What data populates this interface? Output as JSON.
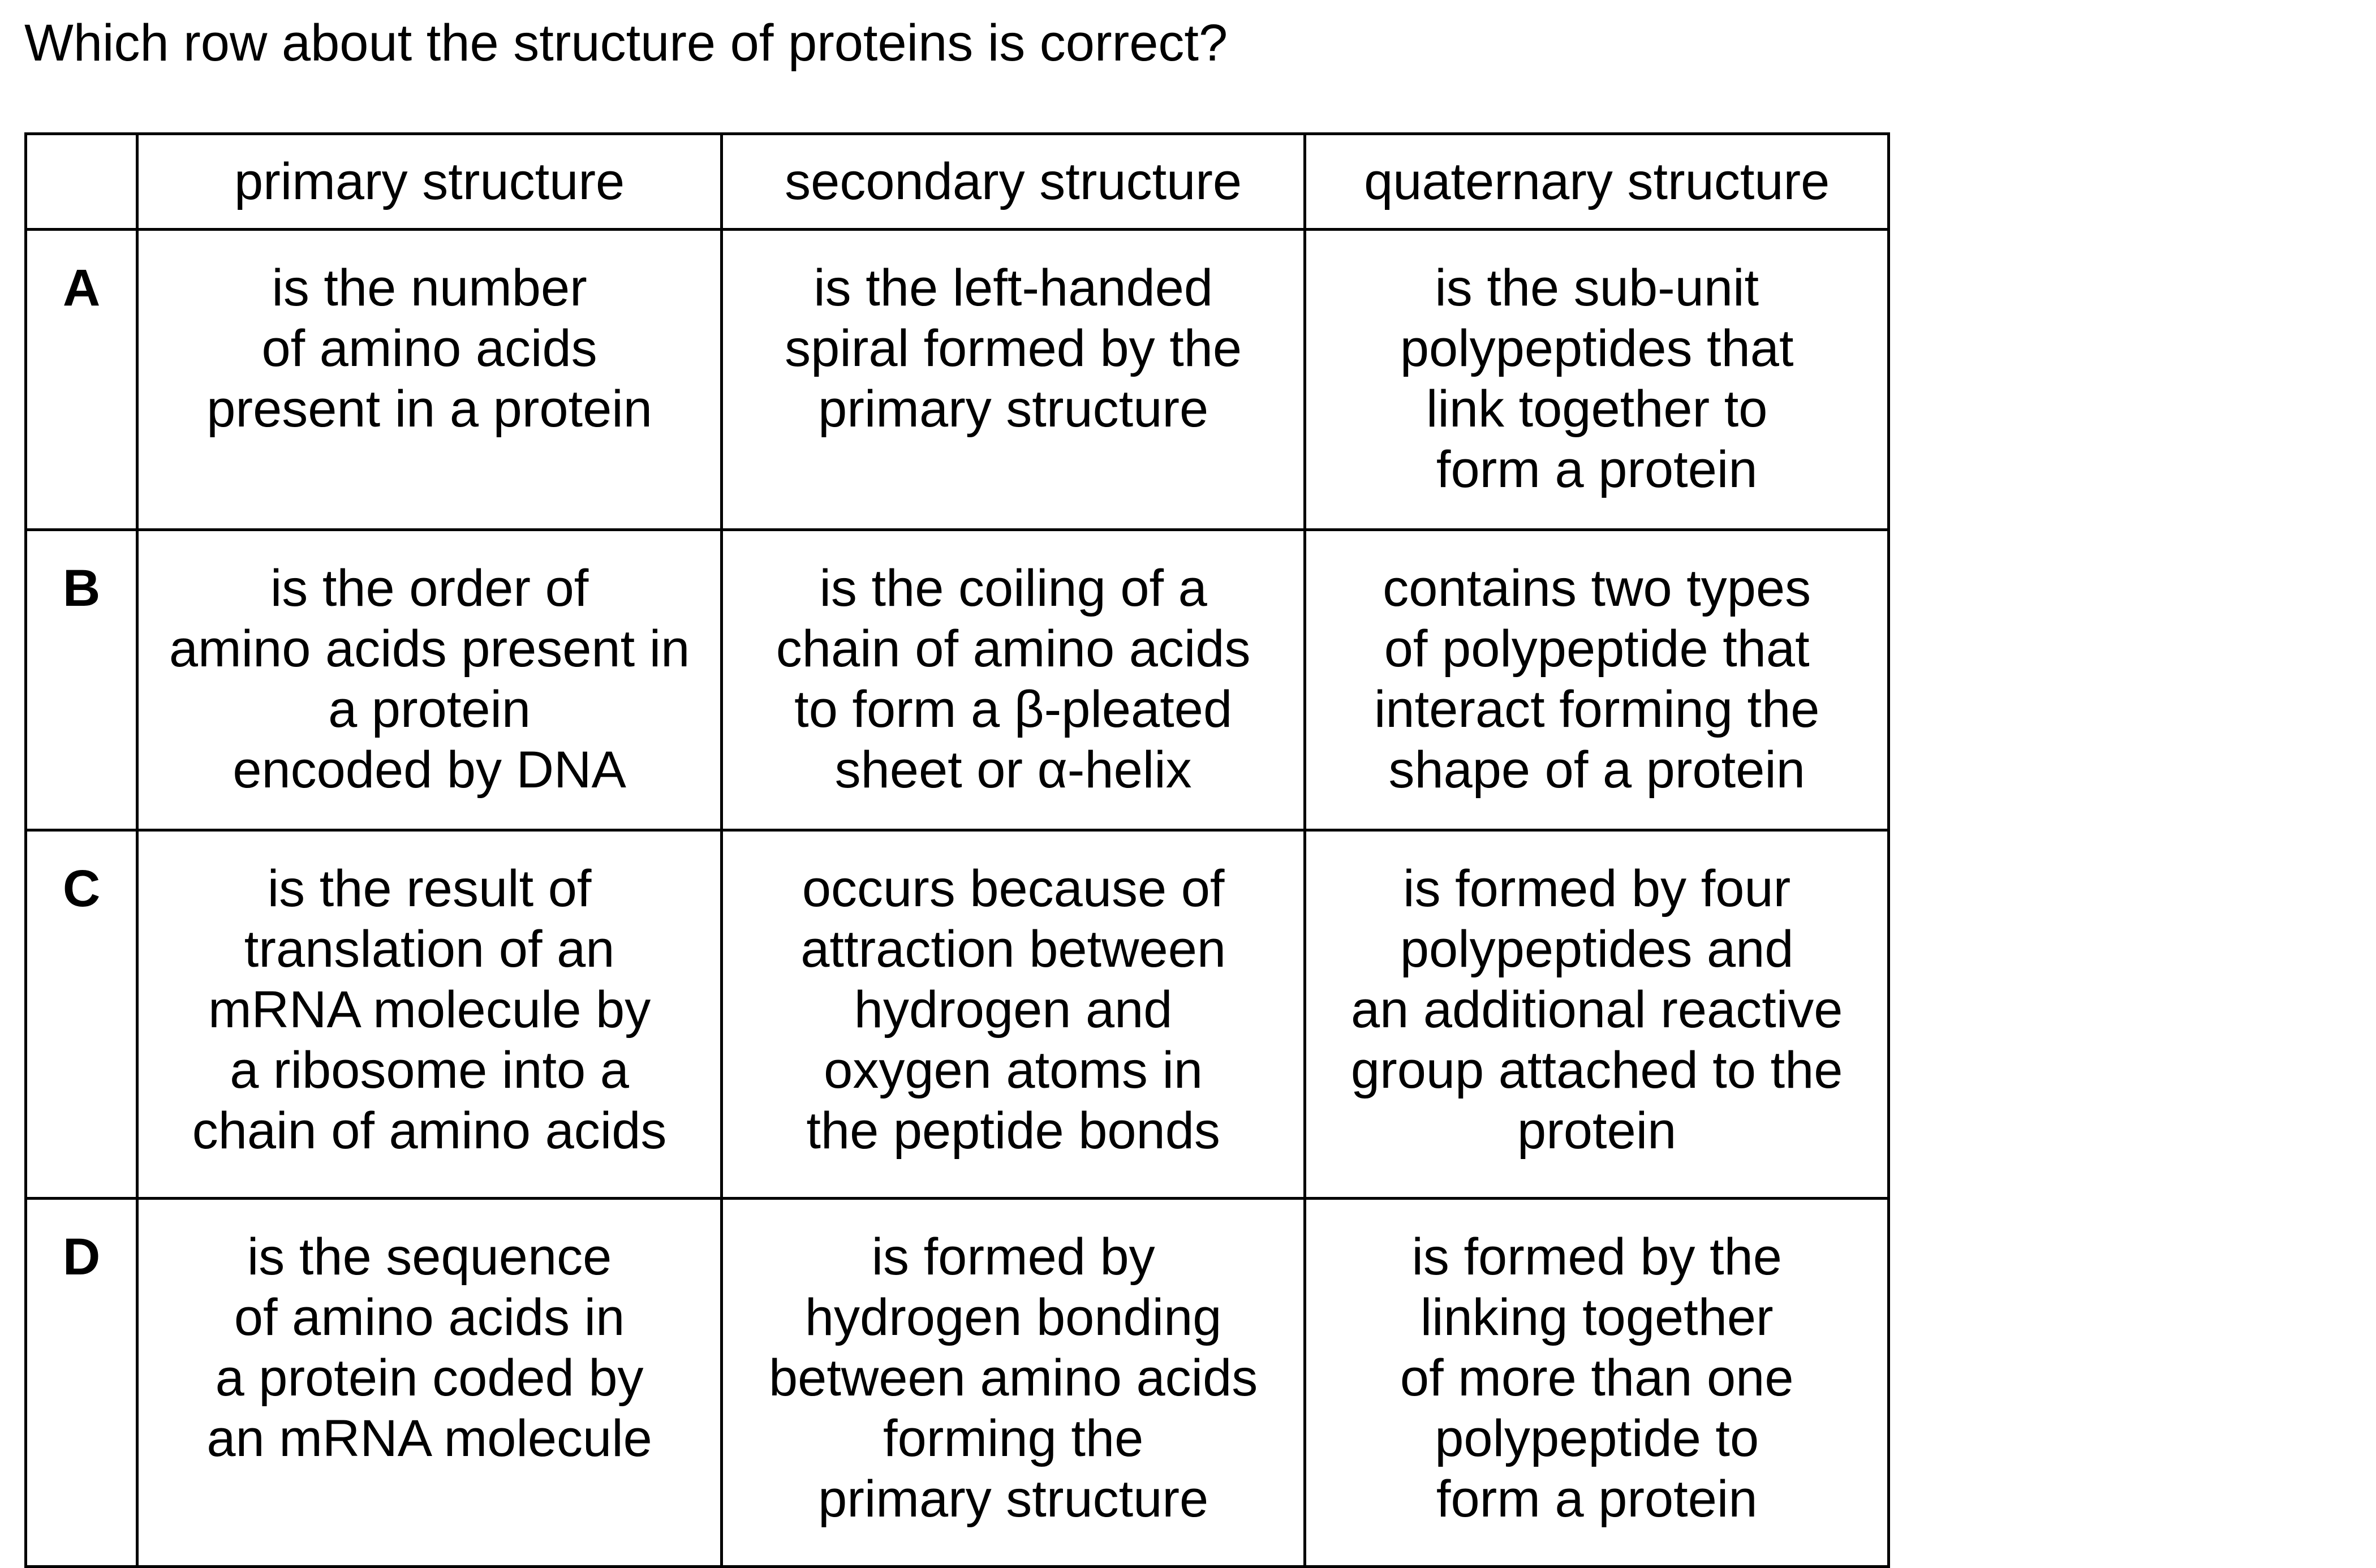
{
  "question": "Which row about the structure of proteins is correct?",
  "columns": [
    "",
    "primary structure",
    "secondary structure",
    "quaternary structure"
  ],
  "rows": [
    {
      "letter": "A",
      "primary": "is the number\nof amino acids\npresent in a protein",
      "secondary": "is the left-handed\nspiral formed by the\nprimary structure",
      "quaternary": "is the sub-unit\npolypeptides that\nlink together to\nform a protein"
    },
    {
      "letter": "B",
      "primary": "is the order of\namino acids present in\na protein\nencoded by DNA",
      "secondary": "is the coiling of a\nchain of amino acids\nto form a β-pleated\nsheet or α-helix",
      "quaternary": "contains two types\nof polypeptide that\ninteract forming the\nshape of a protein"
    },
    {
      "letter": "C",
      "primary": "is the result of\ntranslation of an\nmRNA molecule by\na ribosome into a\nchain of amino acids",
      "secondary": "occurs because of\nattraction between\nhydrogen and\noxygen atoms in\nthe peptide bonds",
      "quaternary": "is formed by four\npolypeptides and\nan additional reactive\ngroup attached to the\nprotein"
    },
    {
      "letter": "D",
      "primary": "is the sequence\nof amino acids in\na protein coded by\nan mRNA molecule",
      "secondary": "is formed by\nhydrogen bonding\nbetween amino acids\nforming the\nprimary structure",
      "quaternary": "is formed by the\nlinking together\nof more than one\npolypeptide to\nform a protein"
    }
  ]
}
